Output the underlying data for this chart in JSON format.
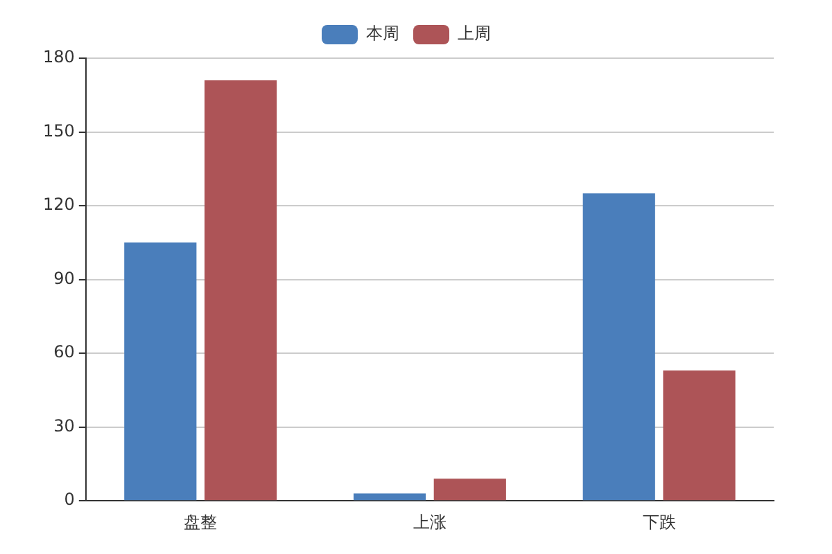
{
  "chart_data": {
    "type": "bar",
    "categories": [
      "盘整",
      "上涨",
      "下跌"
    ],
    "series": [
      {
        "name": "本周",
        "color": "#4a7ebb",
        "values": [
          105,
          3,
          125
        ]
      },
      {
        "name": "上周",
        "color": "#ad5457",
        "values": [
          171,
          9,
          53
        ]
      }
    ],
    "ylim": [
      0,
      180
    ],
    "yticks": [
      0,
      30,
      60,
      90,
      120,
      150,
      180
    ],
    "grid": "y",
    "legend": "top"
  }
}
